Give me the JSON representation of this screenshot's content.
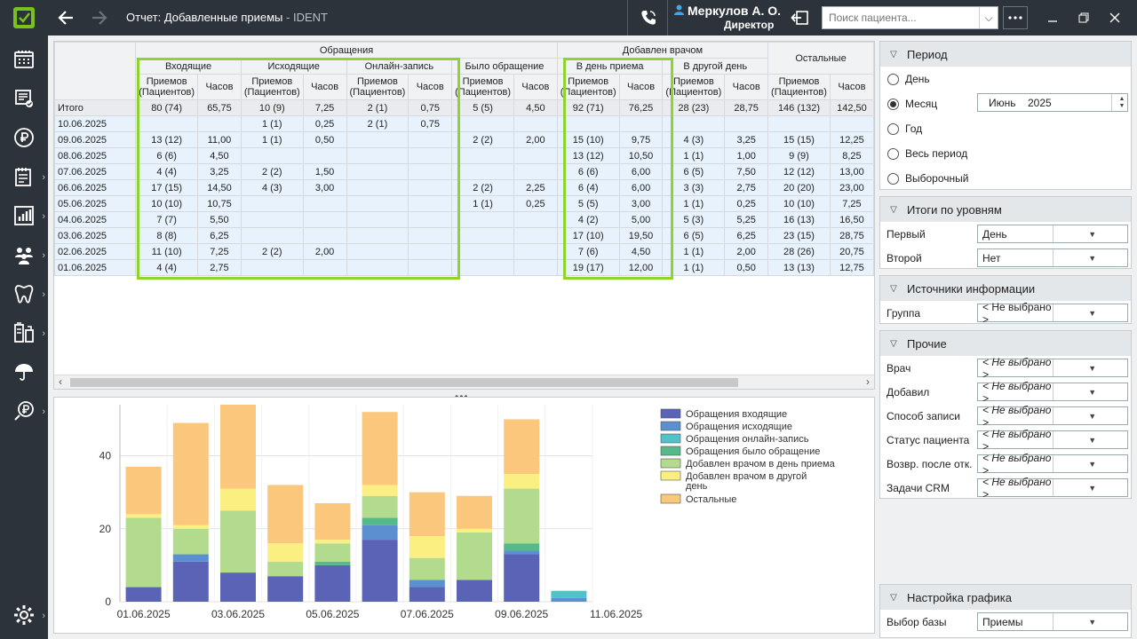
{
  "titlebar": {
    "report_title": "Отчет: Добавленные приемы",
    "app_name": "IDENT",
    "user_name": "Меркулов А. О.",
    "user_role": "Директор",
    "search_placeholder": "Поиск пациента..."
  },
  "icons": [
    "app-logo-icon",
    "back-arrow-icon",
    "forward-arrow-icon",
    "phone-icon",
    "user-icon",
    "logout-icon",
    "more-icon",
    "minimize-icon",
    "maximize-icon",
    "close-icon",
    "schedule-icon",
    "documents-icon",
    "ruble-icon",
    "reports-icon",
    "chart-icon",
    "patients-icon",
    "tooth-icon",
    "lab-icon",
    "insurance-icon",
    "payment-icon",
    "settings-icon"
  ],
  "table": {
    "groups": {
      "obrashcheniya": "Обращения",
      "dobavlen": "Добавлен врачом",
      "ostalnye": "Остальные"
    },
    "subgroups": {
      "incoming": "Входящие",
      "outgoing": "Исходящие",
      "online": "Онлайн-запись",
      "was": "Было обращение",
      "sameday": "В день приема",
      "otherday": "В другой день"
    },
    "col_labels": {
      "priemov": "Приемов (Пациентов)",
      "chasov": "Часов"
    },
    "total_row": [
      "Итого",
      "80 (74)",
      "65,75",
      "10 (9)",
      "7,25",
      "2 (1)",
      "0,75",
      "5 (5)",
      "4,50",
      "92 (71)",
      "76,25",
      "28 (23)",
      "28,75",
      "146 (132)",
      "142,50"
    ],
    "rows": [
      [
        "10.06.2025",
        "",
        "",
        "1 (1)",
        "0,25",
        "2 (1)",
        "0,75",
        "",
        "",
        "",
        "",
        "",
        "",
        "",
        ""
      ],
      [
        "09.06.2025",
        "13 (12)",
        "11,00",
        "1 (1)",
        "0,50",
        "",
        "",
        "2 (2)",
        "2,00",
        "15 (10)",
        "9,75",
        "4 (3)",
        "3,25",
        "15 (15)",
        "12,25"
      ],
      [
        "08.06.2025",
        "6 (6)",
        "4,50",
        "",
        "",
        "",
        "",
        "",
        "",
        "13 (12)",
        "10,50",
        "1 (1)",
        "1,00",
        "9 (9)",
        "8,25"
      ],
      [
        "07.06.2025",
        "4 (4)",
        "3,25",
        "2 (2)",
        "1,50",
        "",
        "",
        "",
        "",
        "6 (6)",
        "6,00",
        "6 (5)",
        "7,50",
        "12 (12)",
        "13,00"
      ],
      [
        "06.06.2025",
        "17 (15)",
        "14,50",
        "4 (3)",
        "3,00",
        "",
        "",
        "2 (2)",
        "2,25",
        "6 (4)",
        "6,00",
        "3 (3)",
        "2,75",
        "20 (20)",
        "23,00"
      ],
      [
        "05.06.2025",
        "10 (10)",
        "10,75",
        "",
        "",
        "",
        "",
        "1 (1)",
        "0,25",
        "5 (5)",
        "3,00",
        "1 (1)",
        "0,25",
        "10 (10)",
        "7,25"
      ],
      [
        "04.06.2025",
        "7 (7)",
        "5,50",
        "",
        "",
        "",
        "",
        "",
        "",
        "4 (2)",
        "5,00",
        "5 (3)",
        "5,25",
        "16 (13)",
        "16,50"
      ],
      [
        "03.06.2025",
        "8 (8)",
        "6,25",
        "",
        "",
        "",
        "",
        "",
        "",
        "17 (10)",
        "19,50",
        "6 (5)",
        "6,25",
        "23 (15)",
        "28,75"
      ],
      [
        "02.06.2025",
        "11 (10)",
        "7,25",
        "2 (2)",
        "2,00",
        "",
        "",
        "",
        "",
        "7 (6)",
        "4,50",
        "1 (1)",
        "2,00",
        "28 (26)",
        "20,75"
      ],
      [
        "01.06.2025",
        "4 (4)",
        "2,75",
        "",
        "",
        "",
        "",
        "",
        "",
        "19 (17)",
        "12,00",
        "1 (1)",
        "0,50",
        "13 (13)",
        "12,75"
      ]
    ]
  },
  "chart_data": {
    "type": "bar",
    "stacked": true,
    "categories": [
      "01.06.2025",
      "02.06.2025",
      "03.06.2025",
      "04.06.2025",
      "05.06.2025",
      "06.06.2025",
      "07.06.2025",
      "08.06.2025",
      "09.06.2025",
      "10.06.2025"
    ],
    "x_tick_labels": [
      "01.06.2025",
      "03.06.2025",
      "05.06.2025",
      "07.06.2025",
      "09.06.2025",
      "11.06.2025"
    ],
    "y_ticks": [
      0,
      20,
      40
    ],
    "ylim": [
      0,
      54
    ],
    "grid": true,
    "legend_position": "right",
    "series": [
      {
        "name": "Обращения входящие",
        "color": "#5b63b7",
        "values": [
          4,
          11,
          8,
          7,
          10,
          17,
          4,
          6,
          13,
          0
        ]
      },
      {
        "name": "Обращения исходящие",
        "color": "#5a8fd0",
        "values": [
          0,
          2,
          0,
          0,
          0,
          4,
          2,
          0,
          1,
          1
        ]
      },
      {
        "name": "Обращения онлайн-запись",
        "color": "#4fc3c9",
        "values": [
          0,
          0,
          0,
          0,
          0,
          0,
          0,
          0,
          0,
          2
        ]
      },
      {
        "name": "Обращения было обращение",
        "color": "#55b98a",
        "values": [
          0,
          0,
          0,
          0,
          1,
          2,
          0,
          0,
          2,
          0
        ]
      },
      {
        "name": "Добавлен врачом в день приема",
        "color": "#b3db8d",
        "values": [
          19,
          7,
          17,
          4,
          5,
          6,
          6,
          13,
          15,
          0
        ]
      },
      {
        "name": "Добавлен врачом в другой день",
        "color": "#fbef82",
        "values": [
          1,
          1,
          6,
          5,
          1,
          3,
          6,
          1,
          4,
          0
        ]
      },
      {
        "name": "Остальные",
        "color": "#fbc77c",
        "values": [
          13,
          28,
          23,
          16,
          10,
          20,
          12,
          9,
          15,
          0
        ]
      }
    ]
  },
  "right_panel": {
    "period": {
      "title": "Период",
      "options": [
        "День",
        "Месяц",
        "Год",
        "Весь период",
        "Выборочный"
      ],
      "selected": "Месяц",
      "month": "Июнь",
      "year": "2025"
    },
    "levels": {
      "title": "Итоги по уровням",
      "first_label": "Первый",
      "first_value": "День",
      "second_label": "Второй",
      "second_value": "Нет"
    },
    "sources": {
      "title": "Источники информации",
      "group_label": "Группа",
      "group_value": "< Не выбрано >"
    },
    "other": {
      "title": "Прочие",
      "fields": [
        {
          "label": "Врач",
          "value": "< Не выбрано >"
        },
        {
          "label": "Добавил",
          "value": "< Не выбрано >"
        },
        {
          "label": "Способ записи",
          "value": "< Не выбрано >"
        },
        {
          "label": "Статус пациента",
          "value": "< Не выбрано >"
        },
        {
          "label": "Возвр. после отк.",
          "value": "< Не выбрано >"
        },
        {
          "label": "Задачи CRM",
          "value": "< Не выбрано >"
        }
      ]
    },
    "chart_settings": {
      "title": "Настройка графика",
      "base_label": "Выбор базы",
      "base_value": "Приемы"
    }
  },
  "colors": {
    "sidebar": "#2c333a",
    "highlight": "#8fd32e",
    "row": "#e8f2fc",
    "accent": "#79c11b"
  }
}
